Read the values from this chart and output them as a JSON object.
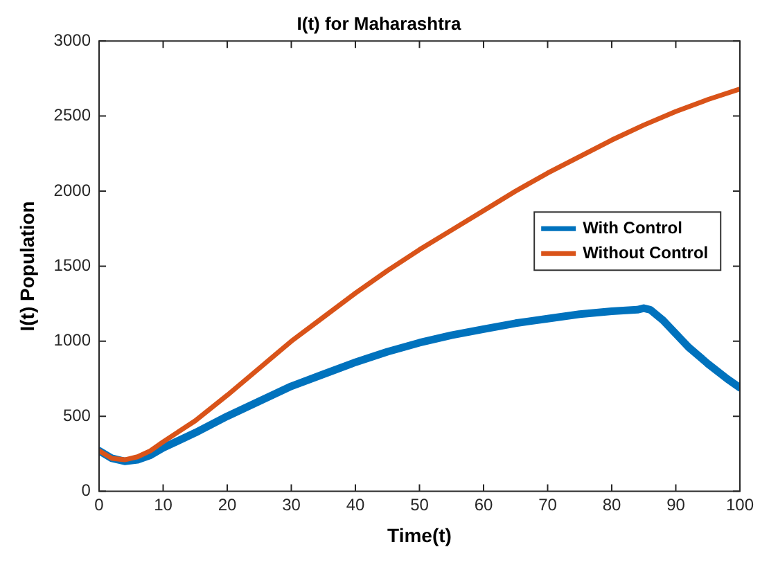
{
  "chart_data": {
    "type": "line",
    "title": "I(t) for Maharashtra",
    "xlabel": "Time(t)",
    "ylabel": "I(t) Population",
    "xlim": [
      0,
      100
    ],
    "xticks": [
      0,
      10,
      20,
      30,
      40,
      50,
      60,
      70,
      80,
      90,
      100
    ],
    "ylim": [
      0,
      3000
    ],
    "yticks": [
      0,
      500,
      1000,
      1500,
      2000,
      2500,
      3000
    ],
    "grid": false,
    "legend": "right",
    "marker": "none",
    "line_style": "solid",
    "series": [
      {
        "name": "With Control",
        "color": "#0072bd",
        "x": [
          0,
          2,
          4,
          6,
          8,
          10,
          15,
          20,
          25,
          30,
          35,
          40,
          45,
          50,
          55,
          60,
          65,
          70,
          75,
          80,
          84,
          85,
          86,
          88,
          90,
          92,
          95,
          98,
          100
        ],
        "values": [
          270,
          220,
          200,
          210,
          240,
          290,
          390,
          500,
          600,
          700,
          780,
          860,
          930,
          990,
          1040,
          1080,
          1120,
          1150,
          1180,
          1200,
          1210,
          1220,
          1210,
          1140,
          1050,
          960,
          850,
          750,
          690
        ]
      },
      {
        "name": "Without Control",
        "color": "#d95319",
        "x": [
          0,
          2,
          4,
          6,
          8,
          10,
          15,
          20,
          25,
          30,
          35,
          40,
          45,
          50,
          55,
          60,
          65,
          70,
          75,
          80,
          85,
          90,
          95,
          100
        ],
        "values": [
          270,
          220,
          210,
          230,
          270,
          330,
          470,
          640,
          820,
          1000,
          1160,
          1320,
          1470,
          1610,
          1740,
          1870,
          2000,
          2120,
          2230,
          2340,
          2440,
          2530,
          2610,
          2680
        ]
      }
    ]
  }
}
